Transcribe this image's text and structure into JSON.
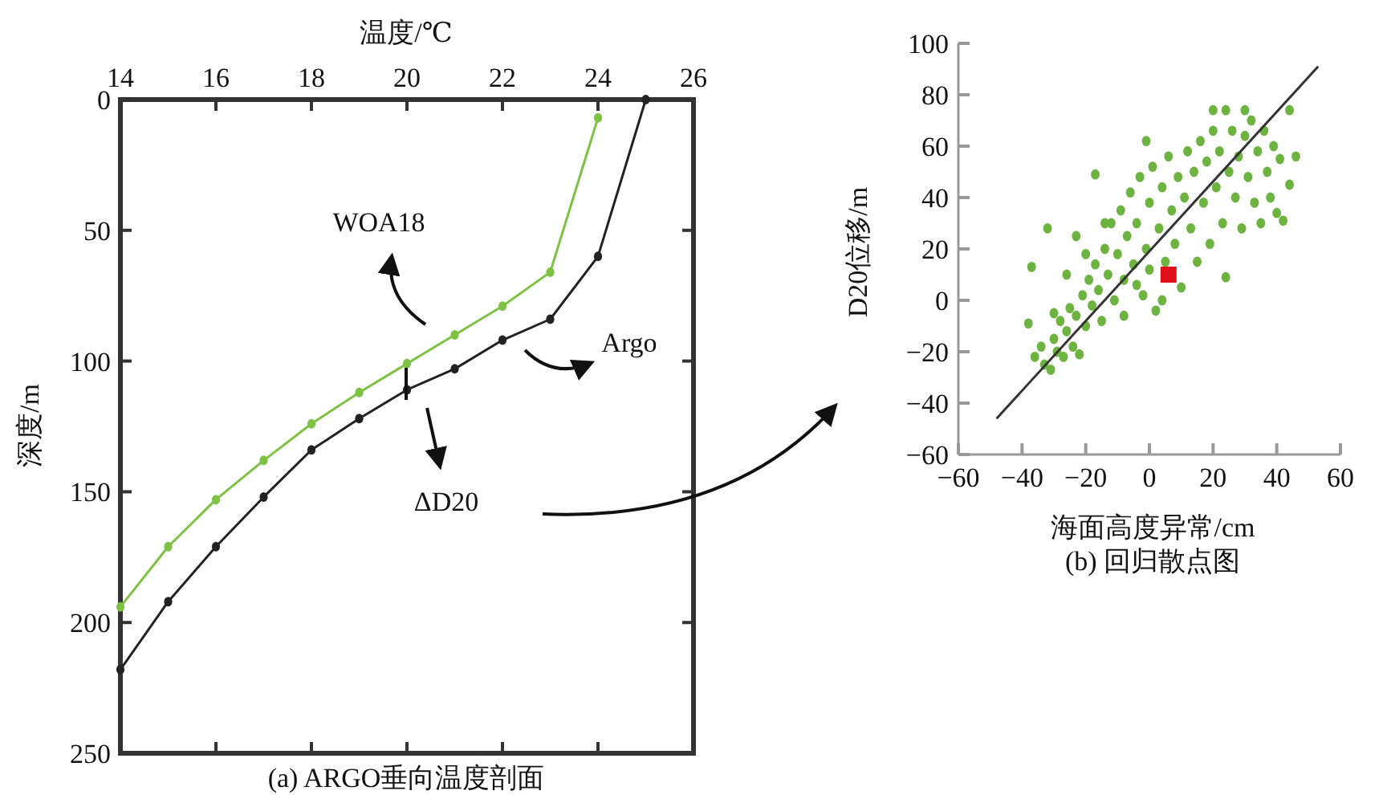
{
  "chart_data": [
    {
      "type": "line",
      "xlabel": "温度/℃",
      "ylabel": "深度/m",
      "xlim": [
        14,
        26
      ],
      "xticks": [
        14,
        16,
        18,
        20,
        22,
        24,
        26
      ],
      "ylim": [
        250,
        0
      ],
      "yticks": [
        0,
        50,
        100,
        150,
        200,
        250
      ],
      "marker": "circle",
      "annotations": [
        "(a) ARGO垂向温度剖面",
        "ΔD20"
      ],
      "series": [
        {
          "name": "WOA18",
          "color": "#7dc242",
          "x": [
            24,
            23,
            22,
            21,
            20,
            19,
            18,
            17,
            16,
            15,
            14
          ],
          "values": [
            7,
            66,
            79,
            90,
            101,
            112,
            124,
            138,
            153,
            171,
            194
          ]
        },
        {
          "name": "Argo",
          "color": "#222222",
          "x": [
            25,
            24,
            23,
            22,
            21,
            20,
            19,
            18,
            17,
            16,
            15,
            14
          ],
          "values": [
            0,
            60,
            84,
            92,
            103,
            111,
            122,
            134,
            152,
            171,
            192,
            218
          ]
        }
      ]
    },
    {
      "type": "scatter",
      "xlabel": "海面高度异常/cm",
      "ylabel": "D20位移/m",
      "xlim": [
        -60,
        60
      ],
      "xticks": [
        -60,
        -40,
        -20,
        0,
        20,
        40,
        60
      ],
      "ylim": [
        -60,
        100
      ],
      "yticks": [
        -60,
        -40,
        -20,
        0,
        20,
        40,
        60,
        80,
        100
      ],
      "marker": "circle",
      "annotations": [
        "(b) 回归散点图"
      ],
      "series": [
        {
          "color": "#6db33f",
          "x": [
            -36,
            -34,
            -33,
            -31,
            -30,
            -29,
            -28,
            -27,
            -26,
            -25,
            -24,
            -23,
            -22,
            -21,
            -20,
            -19,
            -18,
            -17,
            -16,
            -15,
            -14,
            -13,
            -12,
            -11,
            -10,
            -9,
            -8,
            -7,
            -6,
            -5,
            -4,
            -3,
            -2,
            -1,
            0,
            1,
            2,
            3,
            4,
            5,
            6,
            7,
            8,
            9,
            10,
            11,
            12,
            13,
            14,
            15,
            16,
            17,
            18,
            19,
            20,
            21,
            22,
            23,
            24,
            25,
            26,
            27,
            28,
            29,
            30,
            31,
            32,
            33,
            34,
            35,
            36,
            37,
            38,
            39,
            40,
            41,
            42,
            44,
            44,
            46,
            20,
            24,
            30,
            -37,
            -32,
            -38,
            -1,
            -17,
            -23,
            -30,
            -26,
            -20,
            -14,
            -8,
            -4,
            0,
            4
          ],
          "values": [
            -22,
            -18,
            -25,
            -27,
            -15,
            -20,
            -8,
            -22,
            -12,
            -3,
            -18,
            -6,
            -21,
            2,
            -10,
            8,
            -2,
            14,
            4,
            -8,
            20,
            10,
            30,
            0,
            18,
            35,
            8,
            25,
            42,
            14,
            30,
            48,
            2,
            20,
            38,
            52,
            -4,
            28,
            44,
            15,
            56,
            35,
            22,
            48,
            5,
            40,
            58,
            28,
            50,
            15,
            62,
            38,
            54,
            22,
            66,
            44,
            58,
            30,
            9,
            50,
            66,
            40,
            56,
            28,
            64,
            48,
            70,
            38,
            58,
            30,
            66,
            50,
            40,
            60,
            34,
            55,
            31,
            45,
            74,
            56,
            74,
            74,
            74,
            13,
            28,
            -9,
            62,
            49,
            25,
            -5,
            10,
            18,
            30,
            -6,
            6,
            12,
            0
          ]
        },
        {
          "type": "line",
          "marker": "none",
          "color": "#333333",
          "x": [
            -48,
            53
          ],
          "values": [
            -46,
            91
          ]
        },
        {
          "type": "scatter",
          "marker": "square",
          "color": "#e0101a",
          "x": [
            6
          ],
          "values": [
            10
          ]
        }
      ]
    }
  ]
}
